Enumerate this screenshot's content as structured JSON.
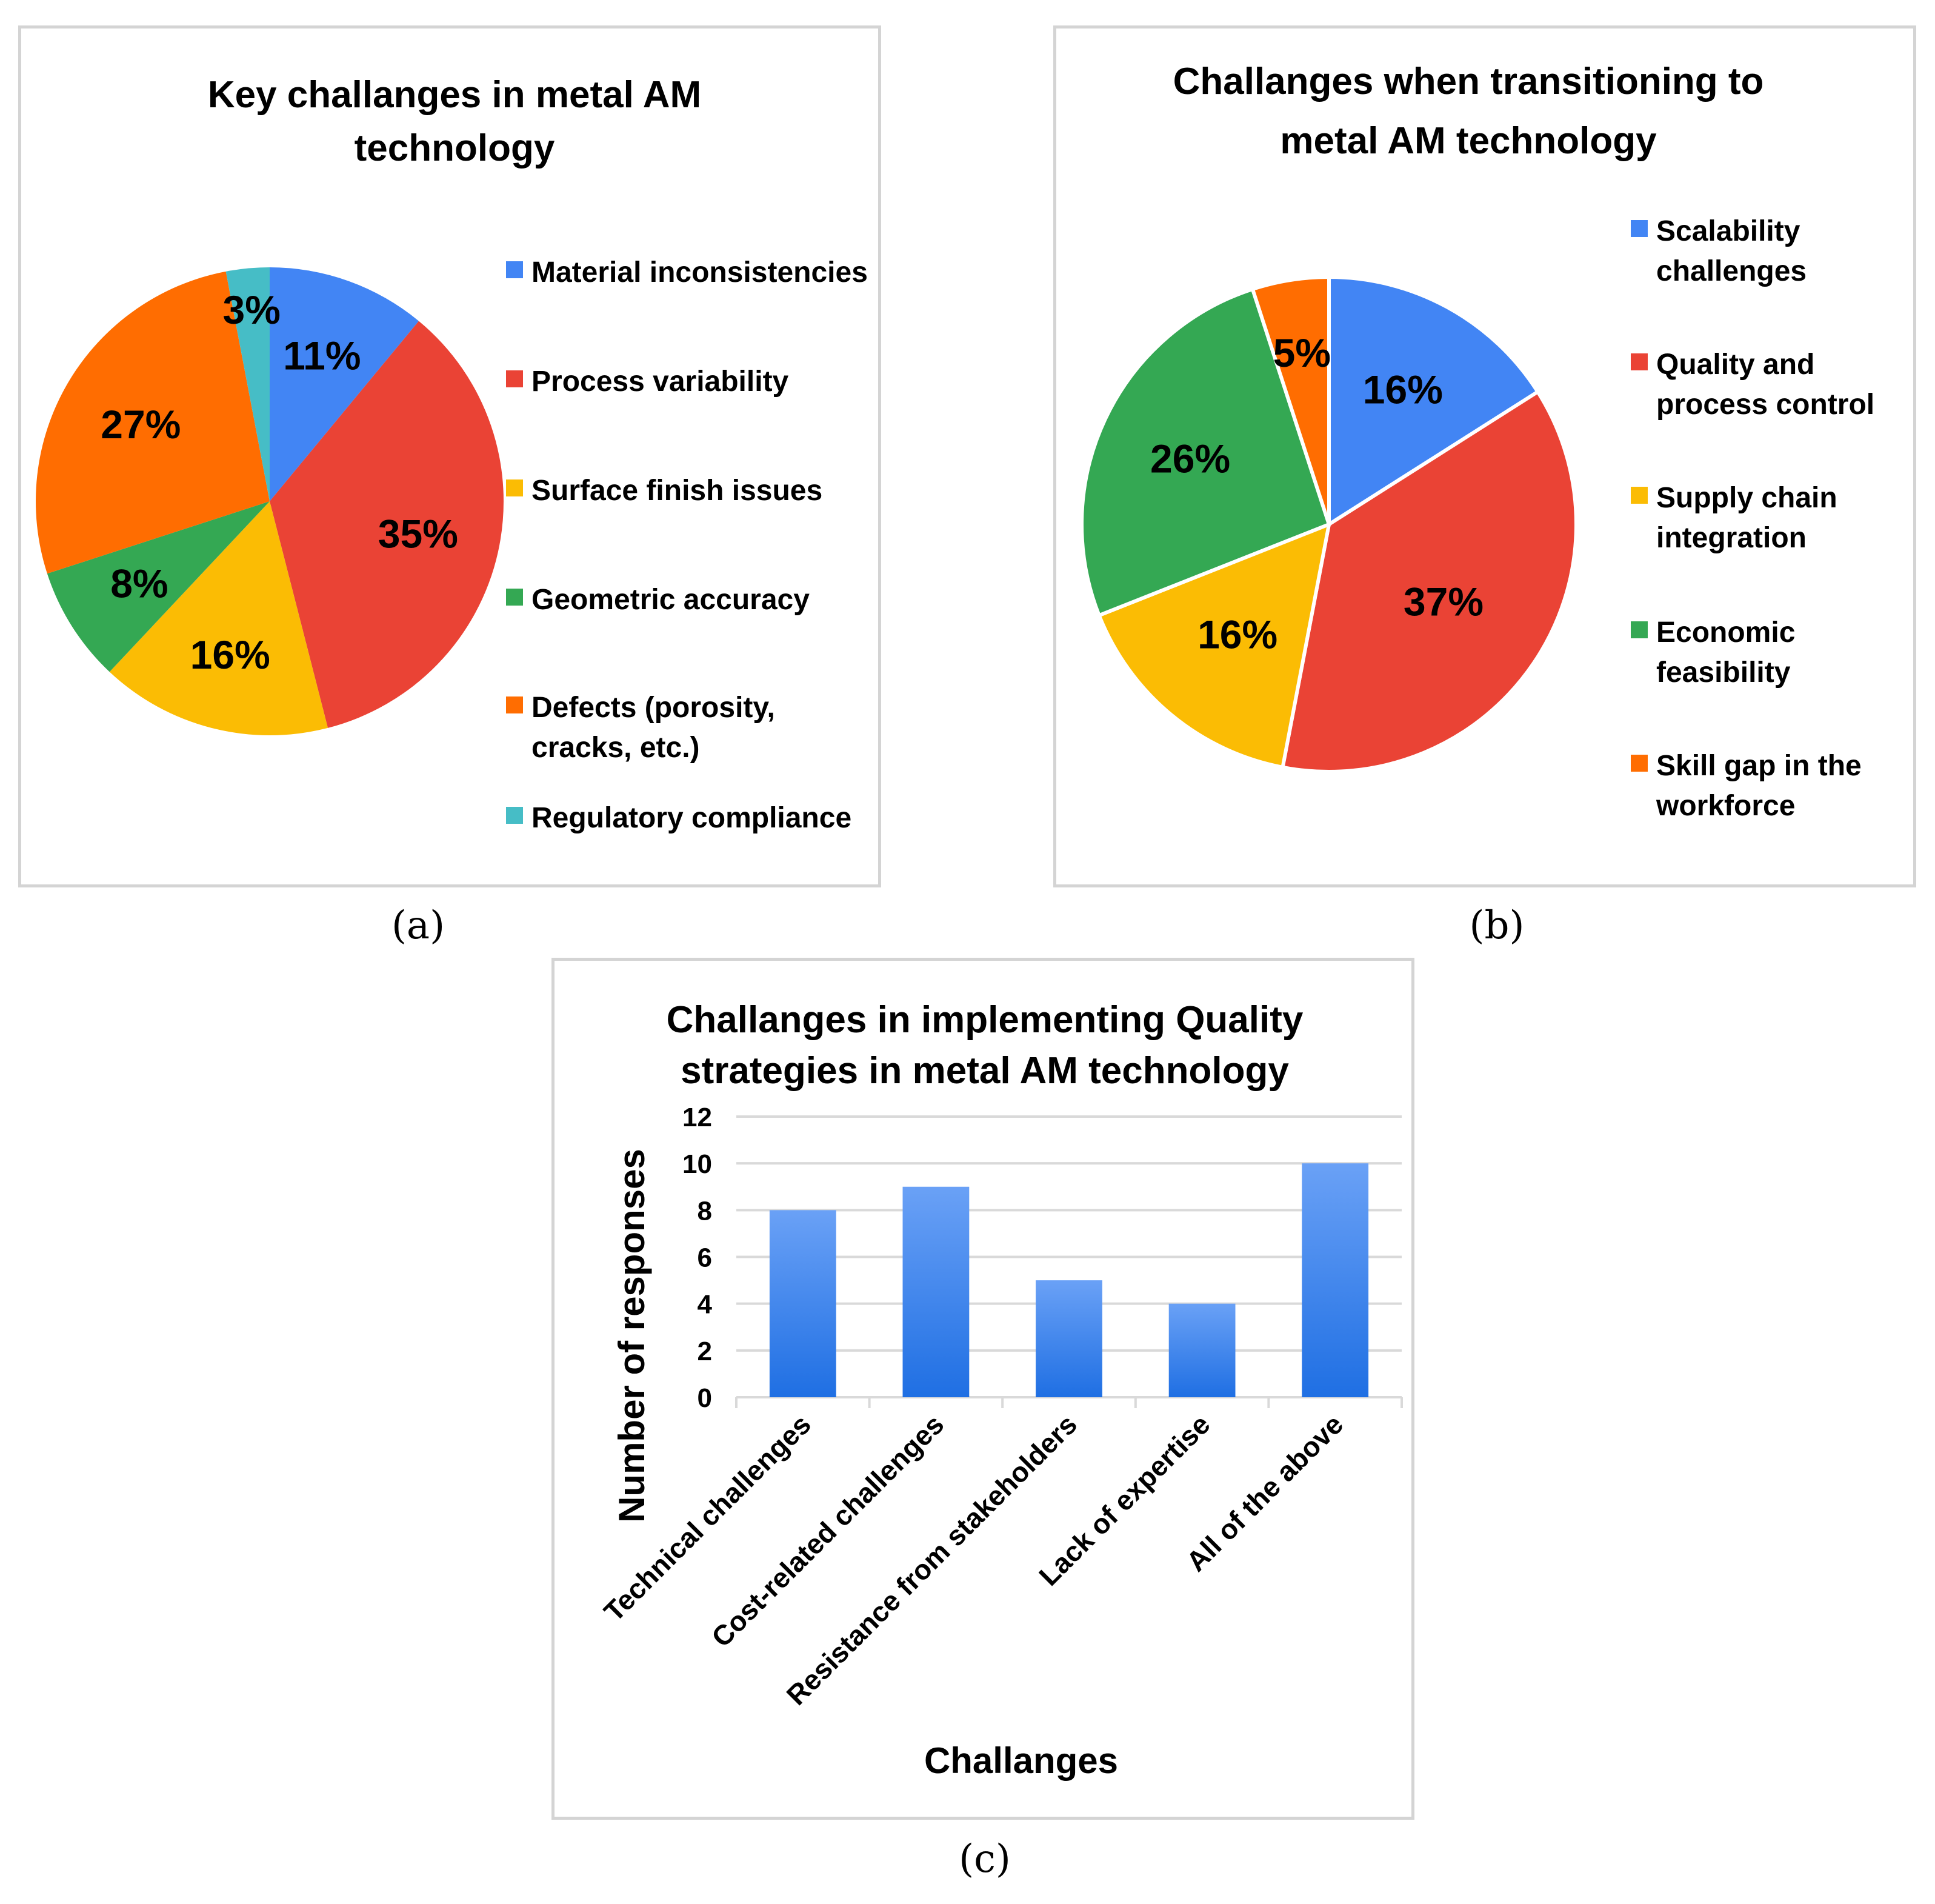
{
  "colors": {
    "blue": "#4285f4",
    "red": "#ea4335",
    "yellow": "#fbbc04",
    "green": "#34a853",
    "orange": "#ff6d01",
    "teal": "#46bdc6",
    "bar_top": "#6aa1f6",
    "bar_bottom": "#1f6fe3",
    "grid": "#d9d9d9"
  },
  "captions": {
    "a": "(a)",
    "b": "(b)",
    "c": "(c)"
  },
  "chart_data": [
    {
      "type": "pie",
      "title_lines": [
        "Key challanges in metal AM",
        "technology"
      ],
      "legend_position": "right",
      "slices": [
        {
          "name": "Material inconsistencies",
          "value": 11,
          "label": "11%",
          "color": "#4285f4"
        },
        {
          "name": "Process variability",
          "value": 35,
          "label": "35%",
          "color": "#ea4335"
        },
        {
          "name": "Surface finish issues",
          "value": 16,
          "label": "16%",
          "color": "#fbbc04"
        },
        {
          "name": "Geometric accuracy",
          "value": 8,
          "label": "8%",
          "color": "#34a853"
        },
        {
          "name": "Defects (porosity, cracks, etc.)",
          "name_lines": [
            "Defects (porosity,",
            "cracks, etc.)"
          ],
          "value": 27,
          "label": "27%",
          "color": "#ff6d01"
        },
        {
          "name": "Regulatory compliance",
          "value": 3,
          "label": "3%",
          "color": "#46bdc6"
        }
      ]
    },
    {
      "type": "pie",
      "title_lines": [
        "Challanges when transitioning to",
        "metal AM technology"
      ],
      "legend_position": "right",
      "slices": [
        {
          "name": "Scalability challenges",
          "name_lines": [
            "Scalability",
            "challenges"
          ],
          "value": 16,
          "label": "16%",
          "color": "#4285f4"
        },
        {
          "name": "Quality  and process control",
          "name_lines": [
            "Quality  and",
            "process control"
          ],
          "value": 37,
          "label": "37%",
          "color": "#ea4335"
        },
        {
          "name": "Supply chain integration",
          "name_lines": [
            "Supply chain",
            "integration"
          ],
          "value": 16,
          "label": "16%",
          "color": "#fbbc04"
        },
        {
          "name": "Economic feasibility",
          "name_lines": [
            "Economic",
            "feasibility"
          ],
          "value": 26,
          "label": "26%",
          "color": "#34a853"
        },
        {
          "name": "Skill gap in the workforce",
          "name_lines": [
            "Skill gap in the",
            "workforce"
          ],
          "value": 5,
          "label": "5%",
          "color": "#ff6d01"
        }
      ]
    },
    {
      "type": "bar",
      "title_lines": [
        "Challanges in implementing Quality",
        "strategies in metal AM technology"
      ],
      "categories": [
        "Technical challenges",
        "Cost-related challenges",
        "Resistance from stakeholders",
        "Lack of expertise",
        "All of the above"
      ],
      "values": [
        8,
        9,
        5,
        4,
        10
      ],
      "xlabel": "Challanges",
      "ylabel": "Number of responses",
      "ylim": [
        0,
        12
      ],
      "yticks": [
        0,
        2,
        4,
        6,
        8,
        10,
        12
      ],
      "grid": true
    }
  ]
}
